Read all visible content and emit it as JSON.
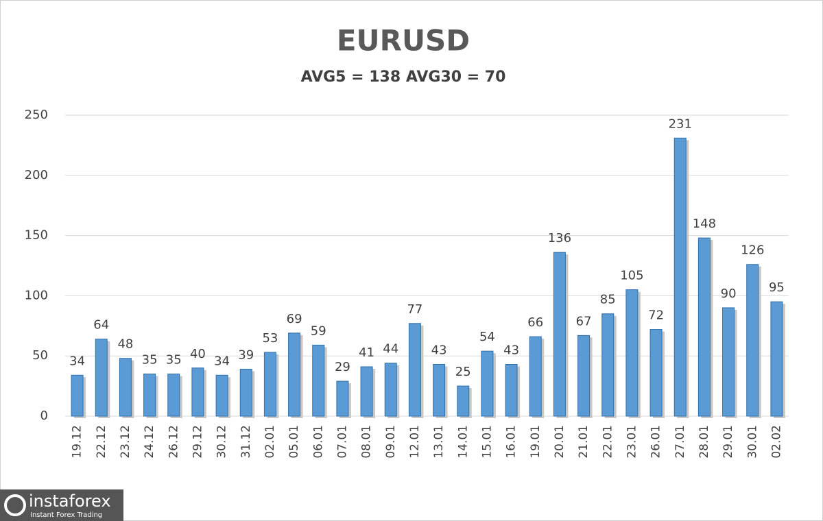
{
  "chart_data": {
    "type": "bar",
    "title": "EURUSD",
    "subtitle": "AVG5 = 138 AVG30 = 70",
    "categories": [
      "19.12",
      "22.12",
      "23.12",
      "24.12",
      "26.12",
      "29.12",
      "30.12",
      "31.12",
      "02.01",
      "05.01",
      "06.01",
      "07.01",
      "08.01",
      "09.01",
      "12.01",
      "13.01",
      "14.01",
      "15.01",
      "16.01",
      "19.01",
      "20.01",
      "21.01",
      "22.01",
      "23.01",
      "26.01",
      "27.01",
      "28.01",
      "29.01",
      "30.01",
      "02.02"
    ],
    "values": [
      34,
      64,
      48,
      35,
      35,
      40,
      34,
      39,
      53,
      69,
      59,
      29,
      41,
      44,
      77,
      43,
      25,
      54,
      43,
      66,
      136,
      67,
      85,
      105,
      72,
      231,
      148,
      90,
      126,
      95
    ],
    "color": "#5b9bd5",
    "ylim": [
      0,
      250
    ],
    "yticks": [
      0,
      50,
      100,
      150,
      200,
      250
    ],
    "grid": true,
    "logo_text": "instaforex",
    "logo_subtext": "Instant Forex Trading"
  }
}
